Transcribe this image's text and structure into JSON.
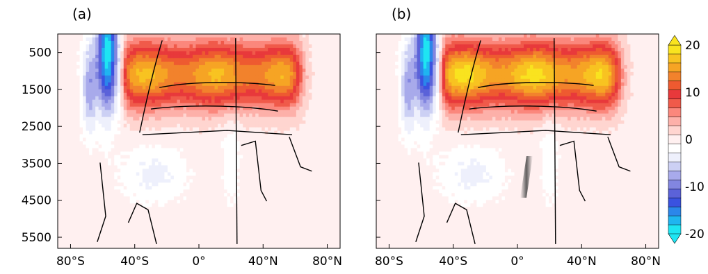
{
  "chart_data": [
    {
      "type": "heatmap",
      "panel_label": "(a)",
      "x_tick_labels": [
        "80°S",
        "40°S",
        "0°",
        "40°N",
        "80°N"
      ],
      "x_ticks": [
        -80,
        -40,
        0,
        40,
        80
      ],
      "xlim": [
        -88,
        88
      ],
      "y_tick_labels": [
        "500",
        "1500",
        "2500",
        "3500",
        "4500",
        "5500"
      ],
      "y_ticks": [
        500,
        1500,
        2500,
        3500,
        4500,
        5500
      ],
      "ylim": [
        5800,
        0
      ],
      "main_cell_max": 15,
      "south_ocean_min": -22
    },
    {
      "type": "heatmap",
      "panel_label": "(b)",
      "x_tick_labels": [
        "80°S",
        "40°S",
        "0°",
        "40°N",
        "80°N"
      ],
      "x_ticks": [
        -80,
        -40,
        0,
        40,
        80
      ],
      "xlim": [
        -88,
        88
      ],
      "y_tick_labels": [
        "500",
        "1500",
        "2500",
        "3500",
        "4500",
        "5500"
      ],
      "y_ticks": [
        500,
        1500,
        2500,
        3500,
        4500,
        5500
      ],
      "ylim": [
        5800,
        0
      ],
      "main_cell_max": 17,
      "south_ocean_min": -22
    }
  ],
  "colorbar": {
    "tick_labels": [
      "20",
      "10",
      "0",
      "-10",
      "-20"
    ],
    "tick_values": [
      20,
      10,
      0,
      -10,
      -20
    ],
    "range": [
      -20,
      20
    ],
    "colors": [
      "#1ee5f2",
      "#1fb5f0",
      "#2b86ea",
      "#3a52e0",
      "#5b62d9",
      "#8286e0",
      "#a8aaeb",
      "#ccd0f4",
      "#eef0fc",
      "#ffffff",
      "#fff0f0",
      "#ffd5d0",
      "#fdb0a9",
      "#fb877c",
      "#f05a4a",
      "#e8393b",
      "#ee5a30",
      "#f2822c",
      "#f6a424",
      "#f8c321",
      "#f9e31f"
    ]
  }
}
